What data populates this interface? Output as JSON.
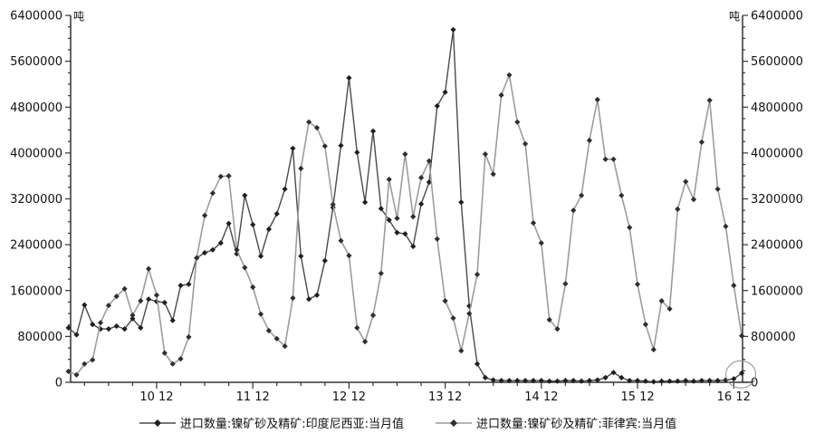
{
  "page": {
    "background": "#ffffff",
    "text_color": "#111111"
  },
  "chart_data": {
    "type": "line",
    "title": "",
    "unit": "吨",
    "x_start": "2010-01",
    "x_end": "2017-01",
    "x_tick_labels": [
      "10 12",
      "11 12",
      "12 12",
      "13 12",
      "14 12",
      "15 12",
      "16 12"
    ],
    "ylim": [
      0,
      6400000
    ],
    "y_major_step": 800000,
    "y_minor_step": 200000,
    "y_tick_labels": [
      "0",
      "800000",
      "1600000",
      "2400000",
      "3200000",
      "4000000",
      "4800000",
      "5600000",
      "6400000"
    ],
    "grid": false,
    "legend_position": "bottom",
    "marker": "diamond",
    "axis_color": "#333333",
    "series": [
      {
        "name": "进口数量:镍矿砂及精矿:印度尼西亚:当月值",
        "line_color": "#4a4a4a",
        "marker_color": "#1f1f1f",
        "values": [
          950000,
          830000,
          1350000,
          1010000,
          930000,
          930000,
          980000,
          930000,
          1110000,
          950000,
          1450000,
          1410000,
          1390000,
          1080000,
          1690000,
          1710000,
          2170000,
          2260000,
          2310000,
          2430000,
          2770000,
          2240000,
          3260000,
          2750000,
          2200000,
          2670000,
          2940000,
          3370000,
          4080000,
          2200000,
          1450000,
          1520000,
          2120000,
          3050000,
          4130000,
          5310000,
          4010000,
          3140000,
          4380000,
          3030000,
          2830000,
          2610000,
          2590000,
          2370000,
          3110000,
          3490000,
          4820000,
          5060000,
          6150000,
          3140000,
          1330000,
          320000,
          80000,
          40000,
          30000,
          30000,
          30000,
          30000,
          30000,
          30000,
          20000,
          20000,
          30000,
          30000,
          20000,
          30000,
          40000,
          80000,
          170000,
          80000,
          30000,
          30000,
          20000,
          10000,
          20000,
          20000,
          20000,
          30000,
          20000,
          30000,
          30000,
          30000,
          40000,
          60000,
          160000
        ]
      },
      {
        "name": "进口数量:镍矿砂及精矿:菲律宾:当月值",
        "line_color": "#9c9c9c",
        "marker_color": "#2e2e2e",
        "values": [
          190000,
          130000,
          320000,
          390000,
          1040000,
          1340000,
          1500000,
          1630000,
          1170000,
          1420000,
          1980000,
          1520000,
          510000,
          320000,
          410000,
          790000,
          2170000,
          2910000,
          3300000,
          3590000,
          3600000,
          2310000,
          2000000,
          1660000,
          1190000,
          900000,
          760000,
          630000,
          1470000,
          3730000,
          4540000,
          4440000,
          4120000,
          3100000,
          2470000,
          2210000,
          950000,
          710000,
          1170000,
          1900000,
          3540000,
          2860000,
          3980000,
          2890000,
          3570000,
          3860000,
          2500000,
          1420000,
          1120000,
          550000,
          1200000,
          1880000,
          3980000,
          3630000,
          5010000,
          5360000,
          4540000,
          4160000,
          2780000,
          2430000,
          1090000,
          930000,
          1720000,
          3000000,
          3260000,
          4220000,
          4930000,
          3890000,
          3890000,
          3260000,
          2700000,
          1710000,
          1010000,
          570000,
          1420000,
          1280000,
          3020000,
          3500000,
          3190000,
          4190000,
          4920000,
          3370000,
          2720000,
          1690000,
          810000
        ]
      }
    ],
    "annotation_circle": {
      "x_month": "2017-01",
      "center_value": 90000
    }
  }
}
